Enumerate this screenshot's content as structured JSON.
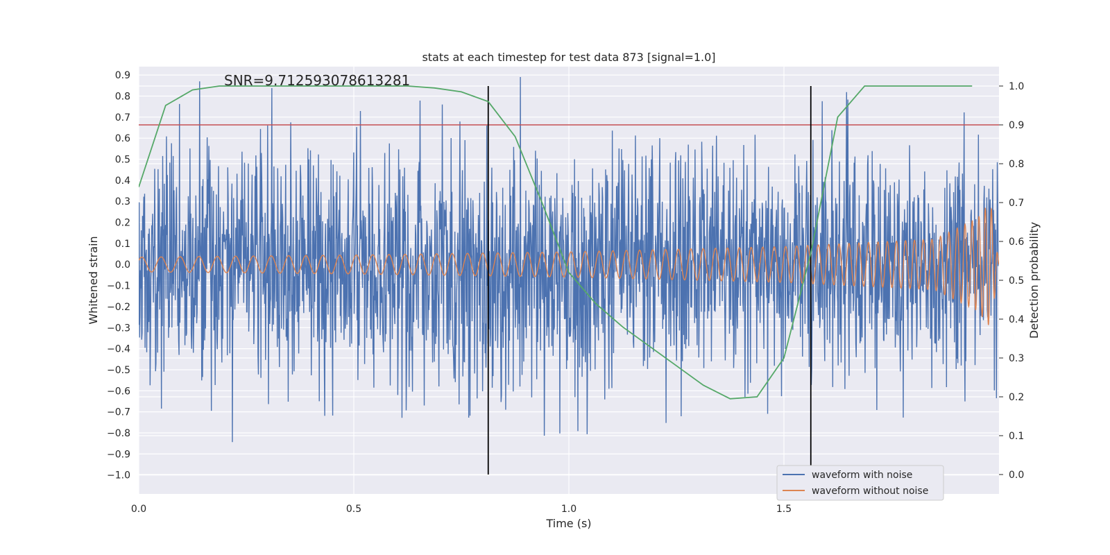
{
  "chart_data": {
    "type": "line",
    "title": "stats at each timestep for test data 873 [signal=1.0]",
    "annotation": "SNR=9.712593078613281",
    "xlabel": "Time (s)",
    "ylabel": "Whitened strain",
    "ylabel_right": "Detection probability",
    "xlim": [
      0.0,
      2.0
    ],
    "ylim": [
      -1.09,
      0.94
    ],
    "ylim_right": [
      -0.05,
      1.05
    ],
    "x_ticks": [
      0.0,
      0.5,
      1.0,
      1.5
    ],
    "x_tick_labels": [
      "0.0",
      "0.5",
      "1.0",
      "1.5"
    ],
    "y_ticks": [
      0.9,
      0.8,
      0.7,
      0.6,
      0.5,
      0.4,
      0.3,
      0.2,
      0.1,
      0.0,
      -0.1,
      -0.2,
      -0.3,
      -0.4,
      -0.5,
      -0.6,
      -0.7,
      -0.8,
      -0.9,
      -1.0
    ],
    "y_tick_labels": [
      "0.9",
      "0.8",
      "0.7",
      "0.6",
      "0.5",
      "0.4",
      "0.3",
      "0.2",
      "0.1",
      "0.0",
      "−0.1",
      "−0.2",
      "−0.3",
      "−0.4",
      "−0.5",
      "−0.6",
      "−0.7",
      "−0.8",
      "−0.9",
      "−1.0"
    ],
    "y_ticks_right": [
      1.0,
      0.9,
      0.8,
      0.7,
      0.6,
      0.5,
      0.4,
      0.3,
      0.2,
      0.1,
      0.0
    ],
    "y_tick_labels_right": [
      "1.0",
      "0.9",
      "0.8",
      "0.7",
      "0.6",
      "0.5",
      "0.4",
      "0.3",
      "0.2",
      "0.1",
      "0.0"
    ],
    "grid": true,
    "legend": {
      "placement": "lower-right",
      "entries": [
        "waveform with noise",
        "waveform without noise"
      ]
    },
    "series": [
      {
        "name": "waveform with noise",
        "color": "#4c72b0",
        "kind": "noise",
        "amplitude": 0.28,
        "seed": 873
      },
      {
        "name": "waveform without noise",
        "color": "#dd8452",
        "kind": "chirp",
        "samples": {
          "t": [
            0.0,
            0.5,
            1.0,
            1.5,
            1.85,
            1.95,
            1.98,
            2.0
          ],
          "amp": [
            0.035,
            0.045,
            0.06,
            0.085,
            0.12,
            0.22,
            0.3,
            0.0
          ]
        },
        "freq_hz": {
          "t": [
            0.0,
            1.0,
            1.5,
            1.9,
            1.97
          ],
          "f": [
            22,
            30,
            38,
            52,
            70
          ]
        }
      },
      {
        "name": "detection probability",
        "color": "#55a868",
        "axis": "right",
        "x": [
          0.0,
          0.0625,
          0.125,
          0.1875,
          0.25,
          0.3125,
          0.375,
          0.4375,
          0.5,
          0.5625,
          0.625,
          0.6875,
          0.75,
          0.8125,
          0.875,
          0.9375,
          1.0,
          1.0625,
          1.125,
          1.1875,
          1.25,
          1.3125,
          1.375,
          1.4375,
          1.5,
          1.5625,
          1.625,
          1.6875,
          1.75,
          1.8125,
          1.875,
          1.9375
        ],
        "y": [
          0.74,
          0.95,
          0.99,
          1.0,
          1.0,
          1.0,
          1.0,
          1.0,
          1.0,
          1.0,
          1.0,
          0.995,
          0.985,
          0.96,
          0.87,
          0.7,
          0.52,
          0.44,
          0.38,
          0.33,
          0.28,
          0.23,
          0.195,
          0.2,
          0.3,
          0.57,
          0.92,
          1.0,
          1.0,
          1.0,
          1.0,
          1.0
        ]
      }
    ],
    "hlines": [
      {
        "y": 0.9,
        "axis": "right",
        "color": "#c44e52"
      }
    ],
    "vlines": [
      {
        "x": 0.8125,
        "y0": 0.0,
        "y1": 1.0,
        "color": "#000000"
      },
      {
        "x": 1.5625,
        "y0": 0.0,
        "y1": 1.0,
        "color": "#000000"
      }
    ]
  }
}
